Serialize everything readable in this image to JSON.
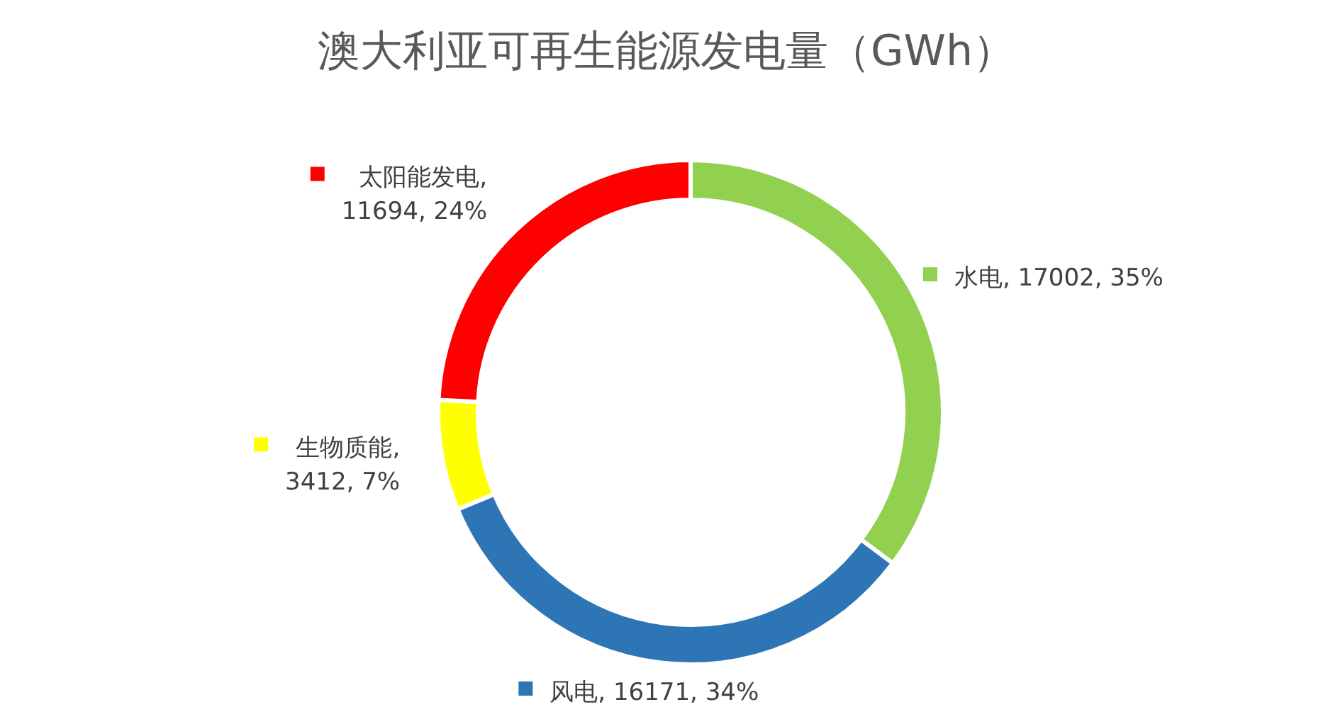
{
  "chart_data": {
    "type": "donut",
    "title": "澳大利亚可再生能源发电量（GWh）",
    "categories": [
      "水电",
      "风电",
      "生物质能",
      "太阳能发电"
    ],
    "values": [
      17002,
      16171,
      3412,
      11694
    ],
    "value_labels": [
      ", 17002, 35%",
      ", 16171, 34%",
      ", 3412, 7%",
      ", 11694, 24%"
    ],
    "colors": [
      "#92d050",
      "#2e75b6",
      "#ffff00",
      "#ff0000"
    ],
    "legend": "left"
  }
}
